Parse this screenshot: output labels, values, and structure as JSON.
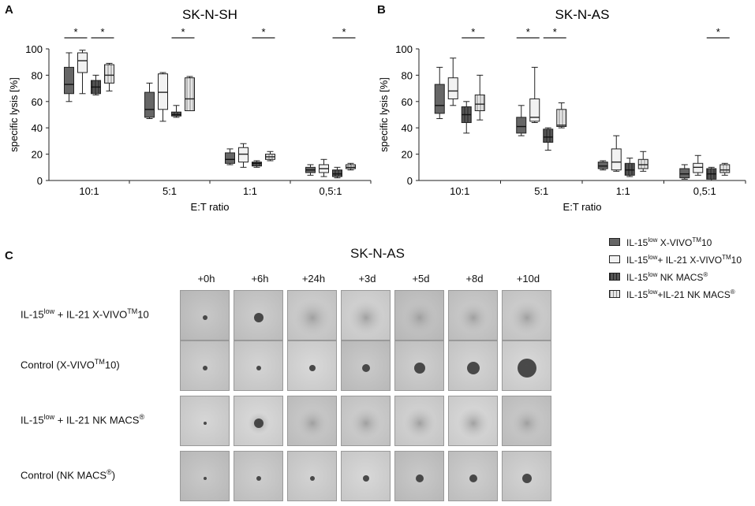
{
  "chart_data": [
    {
      "panel": "A",
      "type": "boxplot",
      "title": "SK-N-SH",
      "xlabel": "E:T ratio",
      "ylabel": "specific lysis [%]",
      "ylim": [
        0,
        100
      ],
      "yticks": [
        "0",
        "20",
        "40",
        "60",
        "80",
        "100"
      ],
      "categories": [
        "10:1",
        "5:1",
        "1:1",
        "0,5:1"
      ],
      "series": [
        {
          "name": "IL-15low X-VIVO10",
          "boxes": [
            {
              "min": 60,
              "q1": 66,
              "median": 73,
              "q3": 86,
              "max": 97
            },
            {
              "min": 47,
              "q1": 48,
              "median": 54,
              "q3": 67,
              "max": 74
            },
            {
              "min": 12,
              "q1": 13,
              "median": 16,
              "q3": 21,
              "max": 24
            },
            {
              "min": 4,
              "q1": 6,
              "median": 8,
              "q3": 10,
              "max": 12
            }
          ]
        },
        {
          "name": "IL-15low+ IL-21 X-VIVO10",
          "boxes": [
            {
              "min": 66,
              "q1": 82,
              "median": 91,
              "q3": 97,
              "max": 99
            },
            {
              "min": 45,
              "q1": 54,
              "median": 67,
              "q3": 81,
              "max": 82
            },
            {
              "min": 10,
              "q1": 14,
              "median": 20,
              "q3": 25,
              "max": 28
            },
            {
              "min": 3,
              "q1": 6,
              "median": 9,
              "q3": 12,
              "max": 16
            }
          ]
        },
        {
          "name": "IL-15low NK MACS",
          "boxes": [
            {
              "min": 65,
              "q1": 66,
              "median": 71,
              "q3": 76,
              "max": 80
            },
            {
              "min": 48,
              "q1": 49,
              "median": 50,
              "q3": 52,
              "max": 57
            },
            {
              "min": 10,
              "q1": 11,
              "median": 13,
              "q3": 14,
              "max": 15
            },
            {
              "min": 2,
              "q1": 3,
              "median": 5,
              "q3": 8,
              "max": 10
            }
          ]
        },
        {
          "name": "IL-15low+IL-21 NK MACS",
          "boxes": [
            {
              "min": 68,
              "q1": 74,
              "median": 80,
              "q3": 88,
              "max": 89
            },
            {
              "min": 53,
              "q1": 53,
              "median": 62,
              "q3": 78,
              "max": 79
            },
            {
              "min": 15,
              "q1": 16,
              "median": 18,
              "q3": 20,
              "max": 22
            },
            {
              "min": 8,
              "q1": 9,
              "median": 10,
              "q3": 12,
              "max": 13
            }
          ]
        }
      ],
      "significance": [
        {
          "series_from": 0,
          "series_to": 1,
          "category": 0,
          "label": "*"
        },
        {
          "series_from": 2,
          "series_to": 3,
          "category": 0,
          "label": "*"
        },
        {
          "series_from": 2,
          "series_to": 3,
          "category": 1,
          "label": "*"
        },
        {
          "series_from": 2,
          "series_to": 3,
          "category": 2,
          "label": "*"
        },
        {
          "series_from": 2,
          "series_to": 3,
          "category": 3,
          "label": "*"
        }
      ]
    },
    {
      "panel": "B",
      "type": "boxplot",
      "title": "SK-N-AS",
      "xlabel": "E:T ratio",
      "ylabel": "specific lysis [%]",
      "ylim": [
        0,
        100
      ],
      "yticks": [
        "0",
        "20",
        "40",
        "60",
        "80",
        "100"
      ],
      "categories": [
        "10:1",
        "5:1",
        "1:1",
        "0,5:1"
      ],
      "series": [
        {
          "name": "IL-15low X-VIVO10",
          "boxes": [
            {
              "min": 47,
              "q1": 51,
              "median": 57,
              "q3": 73,
              "max": 86
            },
            {
              "min": 34,
              "q1": 36,
              "median": 41,
              "q3": 48,
              "max": 57
            },
            {
              "min": 8,
              "q1": 9,
              "median": 11,
              "q3": 14,
              "max": 15
            },
            {
              "min": 1,
              "q1": 2,
              "median": 5,
              "q3": 9,
              "max": 12
            }
          ]
        },
        {
          "name": "IL-15low+ IL-21 X-VIVO10",
          "boxes": [
            {
              "min": 57,
              "q1": 62,
              "median": 68,
              "q3": 78,
              "max": 93
            },
            {
              "min": 44,
              "q1": 45,
              "median": 48,
              "q3": 62,
              "max": 86
            },
            {
              "min": 7,
              "q1": 8,
              "median": 14,
              "q3": 24,
              "max": 34
            },
            {
              "min": 4,
              "q1": 6,
              "median": 10,
              "q3": 13,
              "max": 19
            }
          ]
        },
        {
          "name": "IL-15low NK MACS",
          "boxes": [
            {
              "min": 36,
              "q1": 44,
              "median": 50,
              "q3": 56,
              "max": 60
            },
            {
              "min": 23,
              "q1": 29,
              "median": 33,
              "q3": 39,
              "max": 40
            },
            {
              "min": 3,
              "q1": 4,
              "median": 8,
              "q3": 13,
              "max": 17
            },
            {
              "min": 0,
              "q1": 1,
              "median": 5,
              "q3": 9,
              "max": 10
            }
          ]
        },
        {
          "name": "IL-15low+IL-21 NK MACS",
          "boxes": [
            {
              "min": 46,
              "q1": 53,
              "median": 58,
              "q3": 65,
              "max": 80
            },
            {
              "min": 40,
              "q1": 41,
              "median": 42,
              "q3": 54,
              "max": 59
            },
            {
              "min": 7,
              "q1": 9,
              "median": 12,
              "q3": 16,
              "max": 22
            },
            {
              "min": 4,
              "q1": 6,
              "median": 8,
              "q3": 12,
              "max": 13
            }
          ]
        }
      ],
      "significance": [
        {
          "series_from": 2,
          "series_to": 3,
          "category": 0,
          "label": "*"
        },
        {
          "series_from": 0,
          "series_to": 1,
          "category": 1,
          "label": "*"
        },
        {
          "series_from": 2,
          "series_to": 3,
          "category": 1,
          "label": "*"
        },
        {
          "series_from": 2,
          "series_to": 3,
          "category": 3,
          "label": "*"
        }
      ]
    }
  ],
  "panel_labels": {
    "a": "A",
    "b": "B",
    "c": "C"
  },
  "legend": [
    {
      "pre": "IL-15",
      "sup1": "low",
      "mid": " X-VIVO",
      "sup2": "TM",
      "post": "10",
      "fill": "#666666",
      "pattern": "none"
    },
    {
      "pre": "IL-15",
      "sup1": "low",
      "mid": "+ IL-21 X-VIVO",
      "sup2": "TM",
      "post": "10",
      "fill": "#f2f2f2",
      "pattern": "none"
    },
    {
      "pre": "IL-15",
      "sup1": "low",
      "mid": " NK MACS",
      "sup2": "®",
      "post": "",
      "fill": "#555555",
      "pattern": "vstripe"
    },
    {
      "pre": "IL-15",
      "sup1": "low",
      "mid": "+IL-21 NK MACS",
      "sup2": "®",
      "post": "",
      "fill": "#e6e6e6",
      "pattern": "vstripe"
    }
  ],
  "panel_c": {
    "title": "SK-N-AS",
    "timepoints": [
      "+0h",
      "+6h",
      "+24h",
      "+3d",
      "+5d",
      "+8d",
      "+10d"
    ],
    "rows": [
      {
        "pre": "IL-15",
        "sup": "low",
        "post": " + IL-21 X-VIVO",
        "sup2": "TM",
        "post2": "10",
        "spots": [
          {
            "r": 3,
            "halo": 0
          },
          {
            "r": 6,
            "halo": 0
          },
          {
            "r": 0,
            "halo": 24
          },
          {
            "r": 0,
            "halo": 22
          },
          {
            "r": 0,
            "halo": 22
          },
          {
            "r": 0,
            "halo": 20
          },
          {
            "r": 0,
            "halo": 22
          }
        ]
      },
      {
        "pre": "Control (X-VIVO",
        "sup": "TM",
        "post": "10)",
        "sup2": "",
        "post2": "",
        "spots": [
          {
            "r": 3,
            "halo": 0
          },
          {
            "r": 3,
            "halo": 0
          },
          {
            "r": 4,
            "halo": 0
          },
          {
            "r": 5,
            "halo": 0
          },
          {
            "r": 7,
            "halo": 0
          },
          {
            "r": 8,
            "halo": 0
          },
          {
            "r": 12,
            "halo": 0
          }
        ]
      },
      {
        "pre": "IL-15",
        "sup": "low",
        "post": " + IL-21 NK MACS",
        "sup2": "®",
        "post2": "",
        "spots": [
          {
            "r": 2,
            "halo": 0
          },
          {
            "r": 6,
            "halo": 14
          },
          {
            "r": 0,
            "halo": 20
          },
          {
            "r": 0,
            "halo": 20
          },
          {
            "r": 0,
            "halo": 20
          },
          {
            "r": 0,
            "halo": 20
          },
          {
            "r": 0,
            "halo": 20
          }
        ]
      },
      {
        "pre": "Control (NK MACS",
        "sup": "®",
        "post": ")",
        "sup2": "",
        "post2": "",
        "spots": [
          {
            "r": 2,
            "halo": 0
          },
          {
            "r": 3,
            "halo": 0
          },
          {
            "r": 3,
            "halo": 0
          },
          {
            "r": 4,
            "halo": 0
          },
          {
            "r": 5,
            "halo": 0
          },
          {
            "r": 5,
            "halo": 0
          },
          {
            "r": 6,
            "halo": 0
          }
        ]
      }
    ]
  }
}
